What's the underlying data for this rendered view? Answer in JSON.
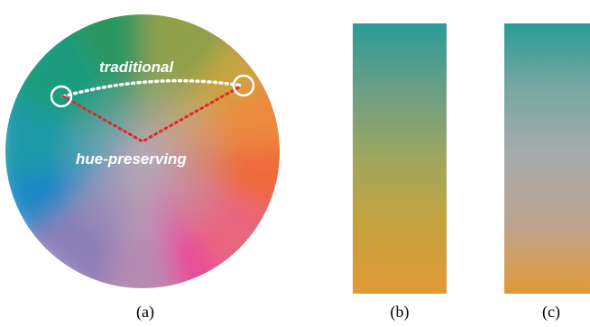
{
  "panel_a": {
    "traditional_label": "traditional",
    "hue_preserving_label": "hue-preserving",
    "caption": "(a)"
  },
  "panel_b": {
    "caption": "(b)",
    "gradient": [
      "#2a9c98",
      "#6d9e86",
      "#9ea75d",
      "#c7a23e",
      "#e09a35"
    ]
  },
  "panel_c": {
    "caption": "(c)",
    "gradient": [
      "#2a9c98",
      "#7aa8a0",
      "#a8acad",
      "#bfa48d",
      "#e09a35"
    ]
  },
  "colors": {
    "traditional_path": "#ffffff",
    "hue_preserving_path": "#e0262e",
    "endpoint_circle": "#ffffff"
  }
}
